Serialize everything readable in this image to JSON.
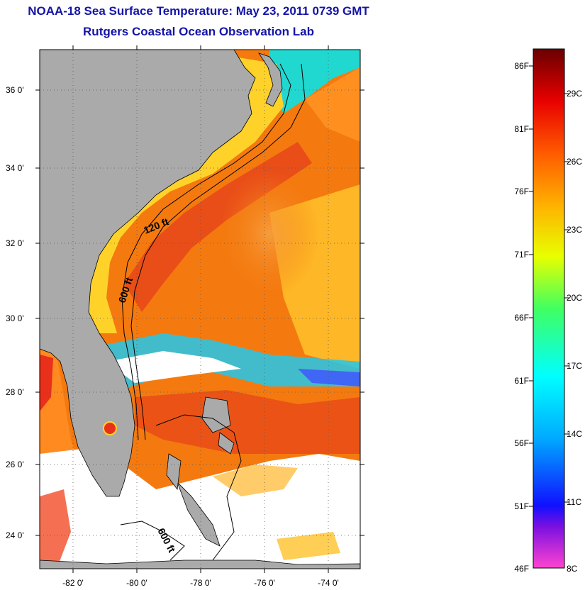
{
  "title": "NOAA-18 Sea Surface Temperature:  May 23, 2011 0739 GMT",
  "subtitle": "Rutgers Coastal Ocean Observation Lab",
  "map": {
    "lat_ticks": [
      "36 0'",
      "34 0'",
      "32 0'",
      "30 0'",
      "28 0'",
      "26 0'",
      "24 0'"
    ],
    "lon_ticks": [
      "-82 0'",
      "-80 0'",
      "-78 0'",
      "-76 0'",
      "-74 0'"
    ],
    "contour_labels": [
      "120 ft",
      "600 ft",
      "600 ft"
    ],
    "colors": {
      "land": "#aaaaaa",
      "cloud": "#ffffff",
      "warm": "#f47a10",
      "coast": "#ffd22a",
      "gulf": "#e23a1a",
      "cool": "#22d7e8"
    }
  },
  "colorbar": {
    "f_labels": [
      "86F",
      "81F",
      "76F",
      "71F",
      "66F",
      "61F",
      "56F",
      "51F",
      "46F"
    ],
    "c_labels": [
      "29C",
      "26C",
      "23C",
      "20C",
      "17C",
      "14C",
      "11C",
      "8C"
    ],
    "colors": [
      "#ff44d0",
      "#7a10e0",
      "#1010ff",
      "#00aaff",
      "#00ffff",
      "#40ff60",
      "#e8ff00",
      "#ffb000",
      "#ff5a00",
      "#e80000",
      "#6a0000"
    ]
  }
}
